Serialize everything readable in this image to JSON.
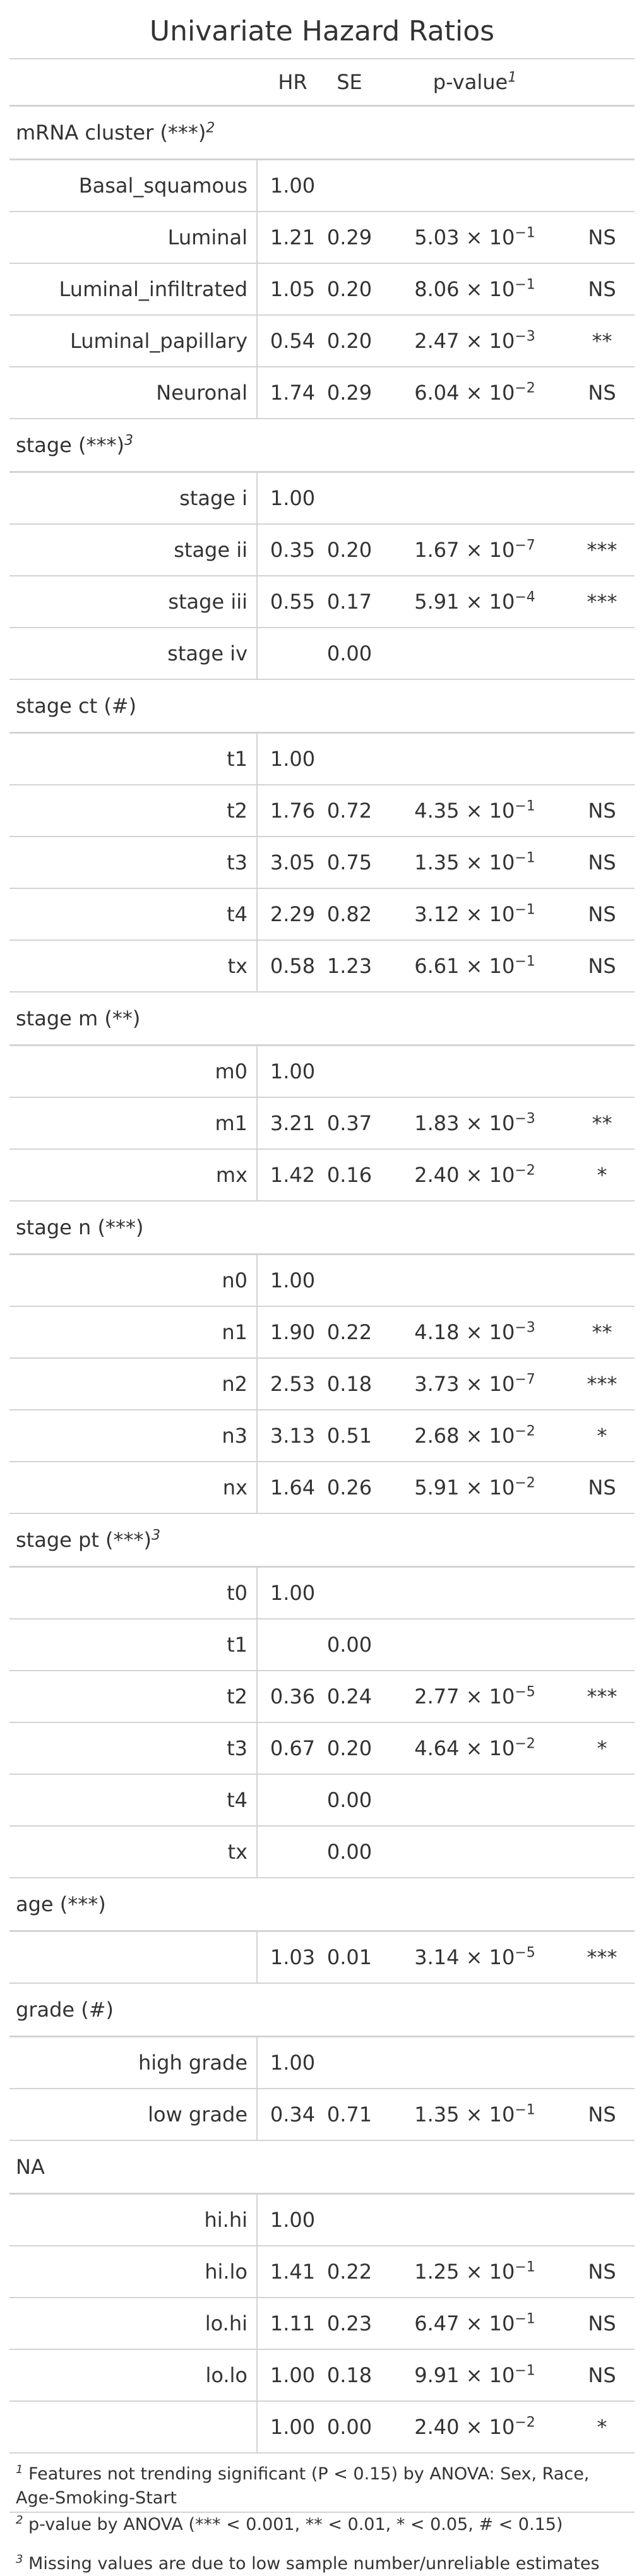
{
  "title": "Univariate Hazard Ratios",
  "columns": {
    "hr": "HR",
    "se": "SE",
    "pvalue": "p-value",
    "pvalue_note": "1"
  },
  "groups": [
    {
      "label": "mRNA cluster (***)",
      "note": "2",
      "rows": [
        {
          "label": "Basal_squamous",
          "hr": "1.00",
          "se": "",
          "p_mant": "",
          "p_exp": "",
          "sig": ""
        },
        {
          "label": "Luminal",
          "hr": "1.21",
          "se": "0.29",
          "p_mant": "5.03",
          "p_exp": "−1",
          "sig": "NS"
        },
        {
          "label": "Luminal_infiltrated",
          "hr": "1.05",
          "se": "0.20",
          "p_mant": "8.06",
          "p_exp": "−1",
          "sig": "NS"
        },
        {
          "label": "Luminal_papillary",
          "hr": "0.54",
          "se": "0.20",
          "p_mant": "2.47",
          "p_exp": "−3",
          "sig": "**"
        },
        {
          "label": "Neuronal",
          "hr": "1.74",
          "se": "0.29",
          "p_mant": "6.04",
          "p_exp": "−2",
          "sig": "NS"
        }
      ]
    },
    {
      "label": "stage (***)",
      "note": "3",
      "rows": [
        {
          "label": "stage i",
          "hr": "1.00",
          "se": "",
          "p_mant": "",
          "p_exp": "",
          "sig": ""
        },
        {
          "label": "stage ii",
          "hr": "0.35",
          "se": "0.20",
          "p_mant": "1.67",
          "p_exp": "−7",
          "sig": "***"
        },
        {
          "label": "stage iii",
          "hr": "0.55",
          "se": "0.17",
          "p_mant": "5.91",
          "p_exp": "−4",
          "sig": "***"
        },
        {
          "label": "stage iv",
          "hr": "",
          "se": "0.00",
          "p_mant": "",
          "p_exp": "",
          "sig": ""
        }
      ]
    },
    {
      "label": "stage ct (#)",
      "note": "",
      "rows": [
        {
          "label": "t1",
          "hr": "1.00",
          "se": "",
          "p_mant": "",
          "p_exp": "",
          "sig": ""
        },
        {
          "label": "t2",
          "hr": "1.76",
          "se": "0.72",
          "p_mant": "4.35",
          "p_exp": "−1",
          "sig": "NS"
        },
        {
          "label": "t3",
          "hr": "3.05",
          "se": "0.75",
          "p_mant": "1.35",
          "p_exp": "−1",
          "sig": "NS"
        },
        {
          "label": "t4",
          "hr": "2.29",
          "se": "0.82",
          "p_mant": "3.12",
          "p_exp": "−1",
          "sig": "NS"
        },
        {
          "label": "tx",
          "hr": "0.58",
          "se": "1.23",
          "p_mant": "6.61",
          "p_exp": "−1",
          "sig": "NS"
        }
      ]
    },
    {
      "label": "stage m (**)",
      "note": "",
      "rows": [
        {
          "label": "m0",
          "hr": "1.00",
          "se": "",
          "p_mant": "",
          "p_exp": "",
          "sig": ""
        },
        {
          "label": "m1",
          "hr": "3.21",
          "se": "0.37",
          "p_mant": "1.83",
          "p_exp": "−3",
          "sig": "**"
        },
        {
          "label": "mx",
          "hr": "1.42",
          "se": "0.16",
          "p_mant": "2.40",
          "p_exp": "−2",
          "sig": "*"
        }
      ]
    },
    {
      "label": "stage n (***)",
      "note": "",
      "rows": [
        {
          "label": "n0",
          "hr": "1.00",
          "se": "",
          "p_mant": "",
          "p_exp": "",
          "sig": ""
        },
        {
          "label": "n1",
          "hr": "1.90",
          "se": "0.22",
          "p_mant": "4.18",
          "p_exp": "−3",
          "sig": "**"
        },
        {
          "label": "n2",
          "hr": "2.53",
          "se": "0.18",
          "p_mant": "3.73",
          "p_exp": "−7",
          "sig": "***"
        },
        {
          "label": "n3",
          "hr": "3.13",
          "se": "0.51",
          "p_mant": "2.68",
          "p_exp": "−2",
          "sig": "*"
        },
        {
          "label": "nx",
          "hr": "1.64",
          "se": "0.26",
          "p_mant": "5.91",
          "p_exp": "−2",
          "sig": "NS"
        }
      ]
    },
    {
      "label": "stage pt (***)",
      "note": "3",
      "rows": [
        {
          "label": "t0",
          "hr": "1.00",
          "se": "",
          "p_mant": "",
          "p_exp": "",
          "sig": ""
        },
        {
          "label": "t1",
          "hr": "",
          "se": "0.00",
          "p_mant": "",
          "p_exp": "",
          "sig": ""
        },
        {
          "label": "t2",
          "hr": "0.36",
          "se": "0.24",
          "p_mant": "2.77",
          "p_exp": "−5",
          "sig": "***"
        },
        {
          "label": "t3",
          "hr": "0.67",
          "se": "0.20",
          "p_mant": "4.64",
          "p_exp": "−2",
          "sig": "*"
        },
        {
          "label": "t4",
          "hr": "",
          "se": "0.00",
          "p_mant": "",
          "p_exp": "",
          "sig": ""
        },
        {
          "label": "tx",
          "hr": "",
          "se": "0.00",
          "p_mant": "",
          "p_exp": "",
          "sig": ""
        }
      ]
    },
    {
      "label": "age (***)",
      "note": "",
      "rows": [
        {
          "label": "",
          "hr": "1.03",
          "se": "0.01",
          "p_mant": "3.14",
          "p_exp": "−5",
          "sig": "***"
        }
      ]
    },
    {
      "label": "grade (#)",
      "note": "",
      "rows": [
        {
          "label": "high grade",
          "hr": "1.00",
          "se": "",
          "p_mant": "",
          "p_exp": "",
          "sig": ""
        },
        {
          "label": "low grade",
          "hr": "0.34",
          "se": "0.71",
          "p_mant": "1.35",
          "p_exp": "−1",
          "sig": "NS"
        }
      ]
    },
    {
      "label": "NA",
      "note": "",
      "rows": [
        {
          "label": "hi.hi",
          "hr": "1.00",
          "se": "",
          "p_mant": "",
          "p_exp": "",
          "sig": ""
        },
        {
          "label": "hi.lo",
          "hr": "1.41",
          "se": "0.22",
          "p_mant": "1.25",
          "p_exp": "−1",
          "sig": "NS"
        },
        {
          "label": "lo.hi",
          "hr": "1.11",
          "se": "0.23",
          "p_mant": "6.47",
          "p_exp": "−1",
          "sig": "NS"
        },
        {
          "label": "lo.lo",
          "hr": "1.00",
          "se": "0.18",
          "p_mant": "9.91",
          "p_exp": "−1",
          "sig": "NS"
        },
        {
          "label": "",
          "hr": "1.00",
          "se": "0.00",
          "p_mant": "2.40",
          "p_exp": "−2",
          "sig": "*"
        }
      ]
    }
  ],
  "footnotes": [
    {
      "mark": "1",
      "text": "Features not trending significant (P < 0.15) by ANOVA: Sex, Race, Age-Smoking-Start"
    },
    {
      "mark": "2",
      "text": "p-value by ANOVA (*** < 0.001, ** < 0.01, * < 0.05, # < 0.15)"
    },
    {
      "mark": "3",
      "text": "Missing values are due to low sample number/unreliable estimates"
    }
  ]
}
